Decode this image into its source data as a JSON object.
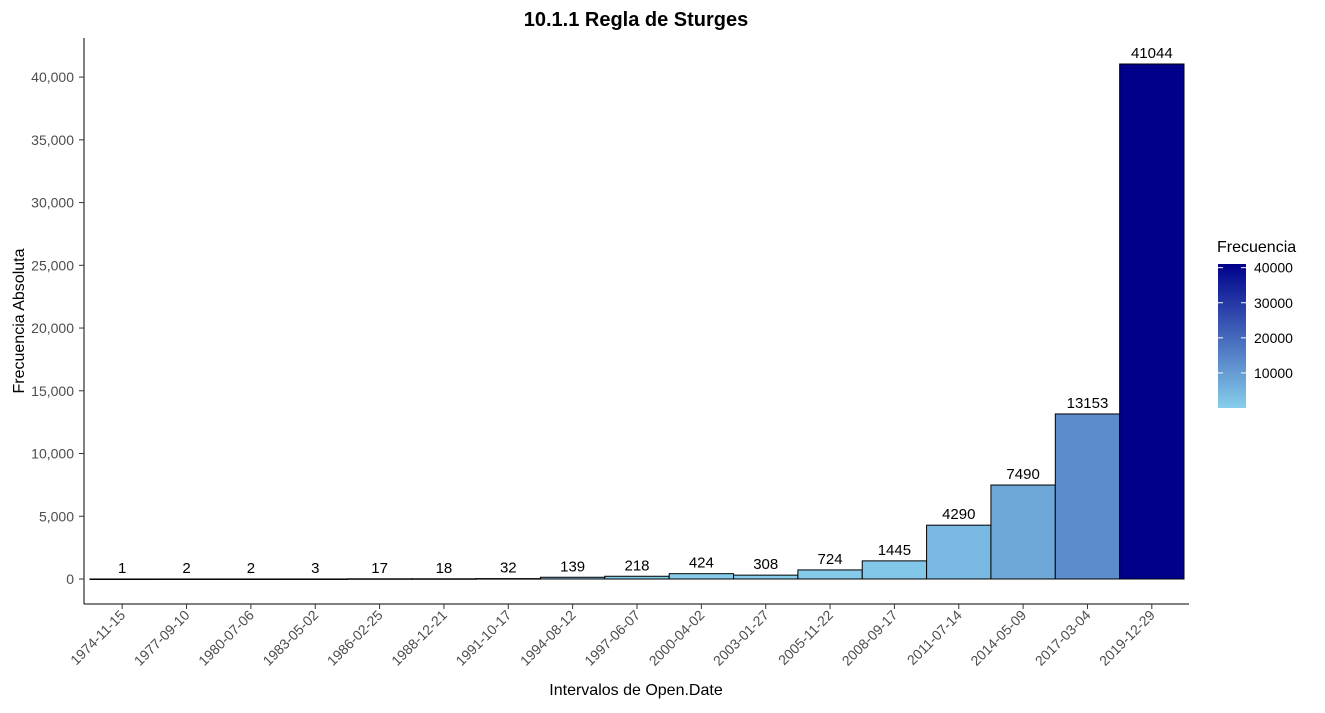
{
  "chart_data": {
    "type": "bar",
    "title": "10.1.1 Regla de Sturges",
    "xlabel": "Intervalos de Open.Date",
    "ylabel": "Frecuencia Absoluta",
    "categories": [
      "1974-11-15",
      "1977-09-10",
      "1980-07-06",
      "1983-05-02",
      "1986-02-25",
      "1988-12-21",
      "1991-10-17",
      "1994-08-12",
      "1997-06-07",
      "2000-04-02",
      "2003-01-27",
      "2005-11-22",
      "2008-09-17",
      "2011-07-14",
      "2014-05-09",
      "2017-03-04",
      "2019-12-29"
    ],
    "values": [
      1,
      2,
      2,
      3,
      17,
      18,
      32,
      139,
      218,
      424,
      308,
      724,
      1445,
      4290,
      7490,
      13153,
      41044
    ],
    "data_labels": [
      "1",
      "2",
      "2",
      "3",
      "17",
      "18",
      "32",
      "139",
      "218",
      "424",
      "308",
      "724",
      "1445",
      "4290",
      "7490",
      "13153",
      "41044"
    ],
    "ylim": [
      -2000,
      43000
    ],
    "y_ticks": [
      0,
      5000,
      10000,
      15000,
      20000,
      25000,
      30000,
      35000,
      40000
    ],
    "y_tick_labels": [
      "0",
      "5,000",
      "10,000",
      "15,000",
      "20,000",
      "25,000",
      "30,000",
      "35,000",
      "40,000"
    ],
    "grid": false,
    "legend": {
      "title": "Frecuencia",
      "placement": "right",
      "ticks": [
        10000,
        20000,
        30000,
        40000
      ],
      "tick_labels": [
        "10000",
        "20000",
        "30000",
        "40000"
      ],
      "range": [
        1,
        41044
      ]
    },
    "colors": {
      "low": "#87ceeb",
      "high": "#00008b",
      "bar_outline": "#000000",
      "text": "#000000",
      "axis_text": "#4d4d4d"
    }
  }
}
